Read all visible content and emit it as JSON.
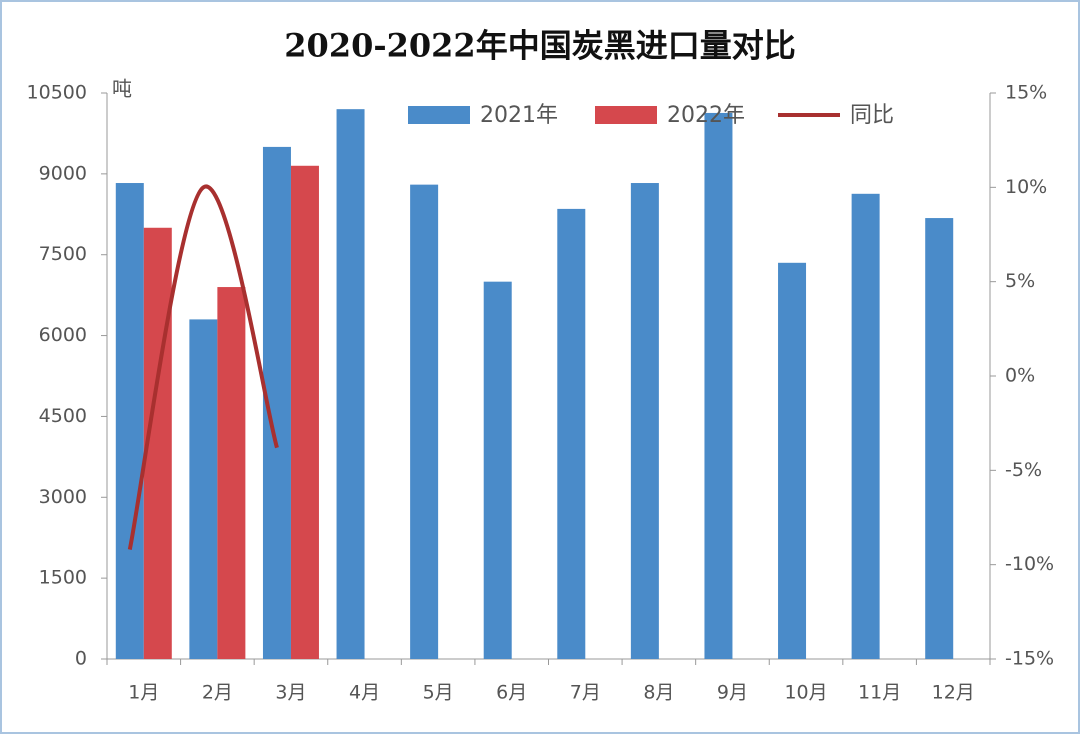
{
  "chart_data": {
    "type": "bar_line",
    "title": "2020-2022年中国炭黑进口量对比",
    "y_unit": "吨",
    "categories": [
      "1月",
      "2月",
      "3月",
      "4月",
      "5月",
      "6月",
      "7月",
      "8月",
      "9月",
      "10月",
      "11月",
      "12月"
    ],
    "series": [
      {
        "name": "2021年",
        "color": "#4a8bc9",
        "type": "bar",
        "values": [
          8830,
          6300,
          9500,
          10200,
          8800,
          7000,
          8350,
          8830,
          10130,
          7350,
          8630,
          8180
        ]
      },
      {
        "name": "2022年",
        "color": "#d5484d",
        "type": "bar",
        "values": [
          8000,
          6900,
          9150,
          null,
          null,
          null,
          null,
          null,
          null,
          null,
          null,
          null
        ]
      },
      {
        "name": "同比",
        "color": "#a8302f",
        "type": "line",
        "axis": "y2",
        "values": [
          -9.2,
          10,
          -3.8,
          null,
          null,
          null,
          null,
          null,
          null,
          null,
          null,
          null
        ]
      }
    ],
    "ylim": [
      0,
      10500
    ],
    "yticks": [
      0,
      1500,
      3000,
      4500,
      6000,
      7500,
      9000,
      10500
    ],
    "y2lim": [
      -15,
      15
    ],
    "y2ticks": [
      {
        "value": -15,
        "label": "-15%"
      },
      {
        "value": -10,
        "label": "-10%"
      },
      {
        "value": -5,
        "label": "-5%"
      },
      {
        "value": 0,
        "label": "0%"
      },
      {
        "value": 5,
        "label": "5%"
      },
      {
        "value": 10,
        "label": "10%"
      },
      {
        "value": 15,
        "label": "15%"
      }
    ],
    "legend": "top"
  }
}
